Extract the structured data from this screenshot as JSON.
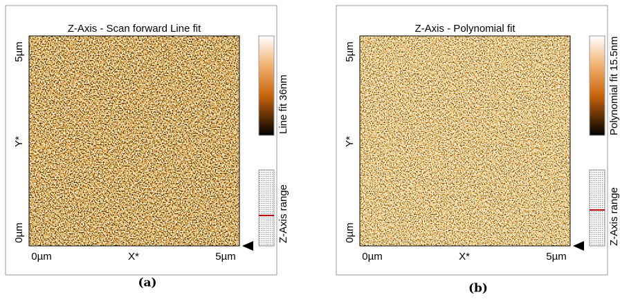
{
  "panels": [
    {
      "title": "Z-Axis - Scan forward   Line fit",
      "y_labels": [
        "5µm",
        "Y*",
        "0µm"
      ],
      "x_labels": [
        "0µm",
        "X*",
        "5µm"
      ],
      "colorbar_label": "Line fit 36nm",
      "range_label": "Z-Axis range",
      "caption": "(a)"
    },
    {
      "title": "Z-Axis - Polynomial fit",
      "y_labels": [
        "5µm",
        "Y*",
        "0µm"
      ],
      "x_labels": [
        "0µm",
        "X*",
        "5µm"
      ],
      "colorbar_label": "Polynomial fit 15.5nm",
      "range_label": "Z-Axis range",
      "caption": "(b)"
    }
  ]
}
